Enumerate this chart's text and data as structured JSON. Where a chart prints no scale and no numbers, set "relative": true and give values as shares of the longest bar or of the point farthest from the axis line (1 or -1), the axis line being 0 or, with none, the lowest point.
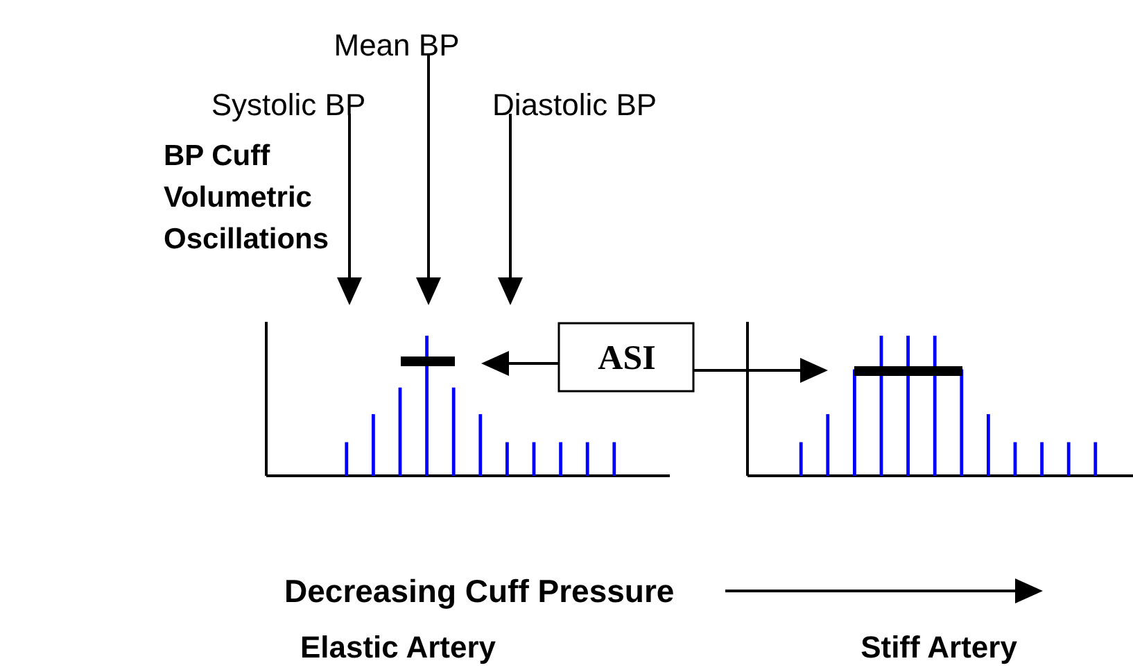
{
  "chart_data": [
    {
      "type": "bar",
      "relative": true,
      "tick_labels": false,
      "ylabel": "BP Cuff Volumetric Oscillations",
      "xlabel": "Elastic Artery",
      "categories": [
        null,
        null,
        null,
        null,
        null,
        null,
        null,
        null,
        null,
        null,
        null
      ],
      "values": [
        0.24,
        0.44,
        0.63,
        1,
        0.63,
        0.44,
        0.24,
        0.24,
        0.24,
        0.24,
        0.24
      ],
      "color": "#0000ff",
      "annotations": [
        "Systolic BP",
        "Mean BP",
        "Diastolic BP",
        "ASI",
        "Decreasing Cuff Pressure"
      ]
    },
    {
      "type": "bar",
      "relative": true,
      "tick_labels": false,
      "xlabel": "Stiff Artery",
      "categories": [
        null,
        null,
        null,
        null,
        null,
        null,
        null,
        null,
        null,
        null,
        null,
        null
      ],
      "values": [
        0.24,
        0.44,
        0.76,
        1,
        1,
        1,
        0.76,
        0.44,
        0.24,
        0.24,
        0.24,
        0.24
      ],
      "color": "#0000ff"
    }
  ]
}
